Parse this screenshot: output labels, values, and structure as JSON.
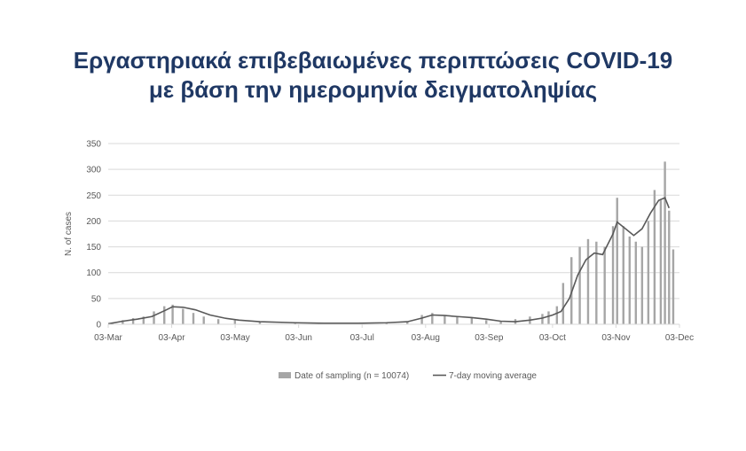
{
  "title": {
    "line1": "Εργαστηριακά επιβεβαιωμένες περιπτώσεις COVID-19",
    "line2": "με βάση την ημερομηνία δειγματοληψίας"
  },
  "colors": {
    "title": "#1f3864",
    "bars": "#a6a6a6",
    "line": "#595959",
    "grid": "#d9d9d9"
  },
  "chart_data": {
    "type": "bar",
    "title": "Εργαστηριακά επιβεβαιωμένες περιπτώσεις COVID-19 με βάση την ημερομηνία δειγματοληψίας",
    "xlabel": "",
    "ylabel": "N. of cases",
    "ylim": [
      0,
      350
    ],
    "yticks": [
      0,
      50,
      100,
      150,
      200,
      250,
      300,
      350
    ],
    "xlim": [
      "2020-03-03",
      "2020-12-03"
    ],
    "xticks": [
      "03-Mar",
      "03-Apr",
      "03-May",
      "03-Jun",
      "03-Jul",
      "03-Aug",
      "03-Sep",
      "03-Oct",
      "03-Nov",
      "03-Dec"
    ],
    "grid": true,
    "legend_position": "bottom",
    "series": [
      {
        "name": "Date of sampling (n = 10074)",
        "kind": "bar",
        "x": [
          "2020-03-05",
          "2020-03-10",
          "2020-03-15",
          "2020-03-20",
          "2020-03-25",
          "2020-03-30",
          "2020-04-03",
          "2020-04-08",
          "2020-04-13",
          "2020-04-18",
          "2020-04-25",
          "2020-05-03",
          "2020-05-15",
          "2020-06-01",
          "2020-06-15",
          "2020-07-01",
          "2020-07-15",
          "2020-07-25",
          "2020-08-01",
          "2020-08-06",
          "2020-08-12",
          "2020-08-18",
          "2020-08-25",
          "2020-09-01",
          "2020-09-08",
          "2020-09-15",
          "2020-09-22",
          "2020-09-28",
          "2020-10-01",
          "2020-10-05",
          "2020-10-08",
          "2020-10-12",
          "2020-10-16",
          "2020-10-20",
          "2020-10-24",
          "2020-10-28",
          "2020-11-01",
          "2020-11-03",
          "2020-11-06",
          "2020-11-09",
          "2020-11-12",
          "2020-11-15",
          "2020-11-18",
          "2020-11-21",
          "2020-11-24",
          "2020-11-26",
          "2020-11-28",
          "2020-11-30"
        ],
        "values": [
          2,
          8,
          12,
          15,
          25,
          35,
          38,
          30,
          22,
          15,
          10,
          8,
          5,
          3,
          2,
          3,
          4,
          6,
          18,
          22,
          18,
          15,
          12,
          8,
          5,
          10,
          15,
          20,
          25,
          35,
          80,
          130,
          150,
          165,
          160,
          150,
          190,
          245,
          190,
          170,
          160,
          150,
          200,
          260,
          240,
          315,
          220,
          145
        ]
      },
      {
        "name": "7-day moving average",
        "kind": "line",
        "x": [
          "2020-03-03",
          "2020-03-10",
          "2020-03-17",
          "2020-03-24",
          "2020-03-31",
          "2020-04-03",
          "2020-04-08",
          "2020-04-14",
          "2020-04-21",
          "2020-04-28",
          "2020-05-05",
          "2020-05-15",
          "2020-06-01",
          "2020-06-15",
          "2020-07-01",
          "2020-07-15",
          "2020-07-25",
          "2020-08-01",
          "2020-08-06",
          "2020-08-12",
          "2020-08-18",
          "2020-08-25",
          "2020-09-01",
          "2020-09-08",
          "2020-09-15",
          "2020-09-22",
          "2020-09-28",
          "2020-10-03",
          "2020-10-07",
          "2020-10-11",
          "2020-10-15",
          "2020-10-19",
          "2020-10-23",
          "2020-10-27",
          "2020-11-01",
          "2020-11-03",
          "2020-11-07",
          "2020-11-11",
          "2020-11-15",
          "2020-11-19",
          "2020-11-23",
          "2020-11-26",
          "2020-11-28"
        ],
        "values": [
          1,
          6,
          10,
          15,
          28,
          34,
          33,
          28,
          18,
          12,
          8,
          5,
          3,
          2,
          2,
          3,
          5,
          12,
          18,
          17,
          15,
          13,
          10,
          6,
          5,
          8,
          12,
          18,
          25,
          50,
          95,
          125,
          138,
          135,
          175,
          198,
          185,
          172,
          185,
          215,
          240,
          245,
          225
        ]
      }
    ]
  }
}
